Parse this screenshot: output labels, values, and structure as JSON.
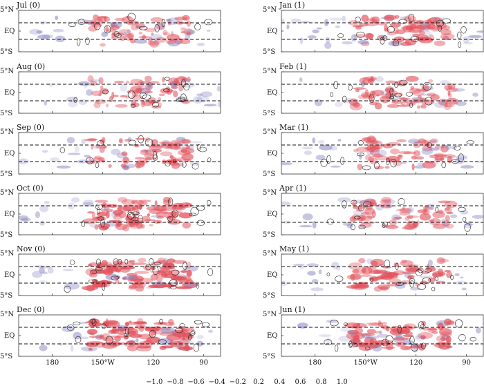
{
  "chart_data": {
    "type": "heatmap",
    "panels": [
      {
        "title": "Jul (0)",
        "column": 0,
        "row": 0,
        "intensity": 0.45
      },
      {
        "title": "Aug (0)",
        "column": 0,
        "row": 1,
        "intensity": 0.45
      },
      {
        "title": "Sep (0)",
        "column": 0,
        "row": 2,
        "intensity": 0.55
      },
      {
        "title": "Oct (0)",
        "column": 0,
        "row": 3,
        "intensity": 0.7
      },
      {
        "title": "Nov (0)",
        "column": 0,
        "row": 4,
        "intensity": 0.9
      },
      {
        "title": "Dec (0)",
        "column": 0,
        "row": 5,
        "intensity": 0.85
      },
      {
        "title": "Jan (1)",
        "column": 1,
        "row": 0,
        "intensity": 0.6
      },
      {
        "title": "Feb (1)",
        "column": 1,
        "row": 1,
        "intensity": 0.5
      },
      {
        "title": "Mar (1)",
        "column": 1,
        "row": 2,
        "intensity": 0.5
      },
      {
        "title": "Apr (1)",
        "column": 1,
        "row": 3,
        "intensity": 0.5
      },
      {
        "title": "May (1)",
        "column": 1,
        "row": 4,
        "intensity": 0.6
      },
      {
        "title": "Jun (1)",
        "column": 1,
        "row": 5,
        "intensity": 0.7
      }
    ],
    "y_ticks": [
      "5°N",
      "EQ",
      "5°S"
    ],
    "x_ticks": [
      "180",
      "150°W",
      "120",
      "90"
    ],
    "x_tick_values": [
      180,
      150,
      120,
      90
    ],
    "x_range": [
      200,
      80
    ],
    "y_range": [
      -5,
      5
    ],
    "dashed_lines_lat": [
      2,
      -2
    ],
    "colorbar": {
      "ticks": [
        "−1.0",
        "−0.8",
        "−0.6",
        "−0.4",
        "−0.2",
        "0.2",
        "0.4",
        "0.6",
        "0.8",
        "1.0"
      ],
      "bounds": [
        -1.1,
        -1.0,
        -0.8,
        -0.6,
        -0.4,
        -0.2,
        0.2,
        0.4,
        0.6,
        0.8,
        1.0,
        1.1
      ],
      "colors": [
        "#3f3a8f",
        "#5c58a3",
        "#7d7ab6",
        "#a3a1cc",
        "#c9c8e2",
        "#ffffff",
        "#f5c9ce",
        "#efa3aa",
        "#e77b84",
        "#dc4e59",
        "#cc2b37"
      ]
    },
    "colors": {
      "negative": "#8a88c4",
      "positive": "#e2535d",
      "contour": "#222222",
      "dashed": "#111111"
    }
  }
}
